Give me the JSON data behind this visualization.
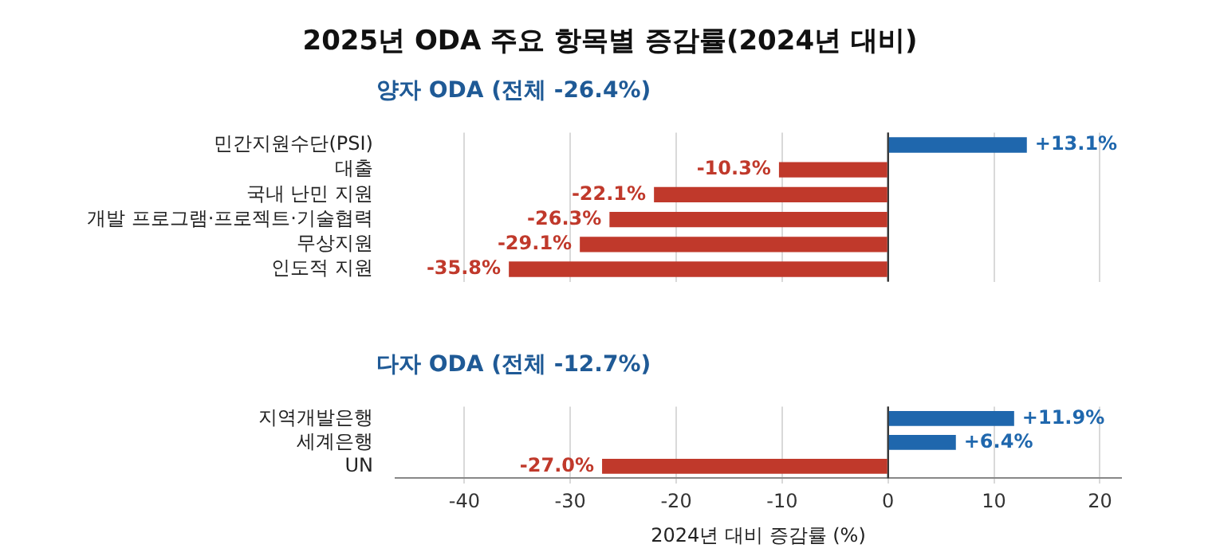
{
  "chart_data": [
    {
      "type": "bar",
      "orientation": "horizontal",
      "title": "2025년 ODA 주요 항목별 증감률(2024년 대비)",
      "subtitle": "양자 ODA (전체 -26.4%)",
      "categories": [
        "민간지원수단(PSI)",
        "대출",
        "국내 난민 지원",
        "개발 프로그램·프로젝트·기술협력",
        "무상지원",
        "인도적 지원"
      ],
      "values": [
        13.1,
        -10.3,
        -22.1,
        -26.3,
        -29.1,
        -35.8
      ],
      "colors": [
        "#1f67ad",
        "#c0392b",
        "#c0392b",
        "#c0392b",
        "#c0392b",
        "#c0392b"
      ],
      "value_labels": [
        "+13.1%",
        "-10.3%",
        "-22.1%",
        "-26.3%",
        "-29.1%",
        "-35.8%"
      ],
      "xticks": [
        -40,
        -30,
        -20,
        -10,
        0,
        10,
        20
      ],
      "grid": "x",
      "tick_labels": "y",
      "ref_lines": [
        {
          "axis": "x",
          "value": 0,
          "color": "#333333"
        }
      ]
    },
    {
      "type": "bar",
      "orientation": "horizontal",
      "title": "다자 ODA (전체 -12.7%)",
      "xlabel": "2024년 대비 증감률 (%)",
      "categories": [
        "지역개발은행",
        "세계은행",
        "UN"
      ],
      "values": [
        11.9,
        6.4,
        -27.0
      ],
      "colors": [
        "#1f67ad",
        "#1f67ad",
        "#c0392b"
      ],
      "value_labels": [
        "+11.9%",
        "+6.4%",
        "-27.0%"
      ],
      "xlim": [
        -46.5,
        22
      ],
      "xticks": [
        -40,
        -30,
        -20,
        -10,
        0,
        10,
        20
      ],
      "grid": "x",
      "ref_lines": [
        {
          "axis": "x",
          "value": 0,
          "color": "#333333"
        }
      ]
    }
  ]
}
